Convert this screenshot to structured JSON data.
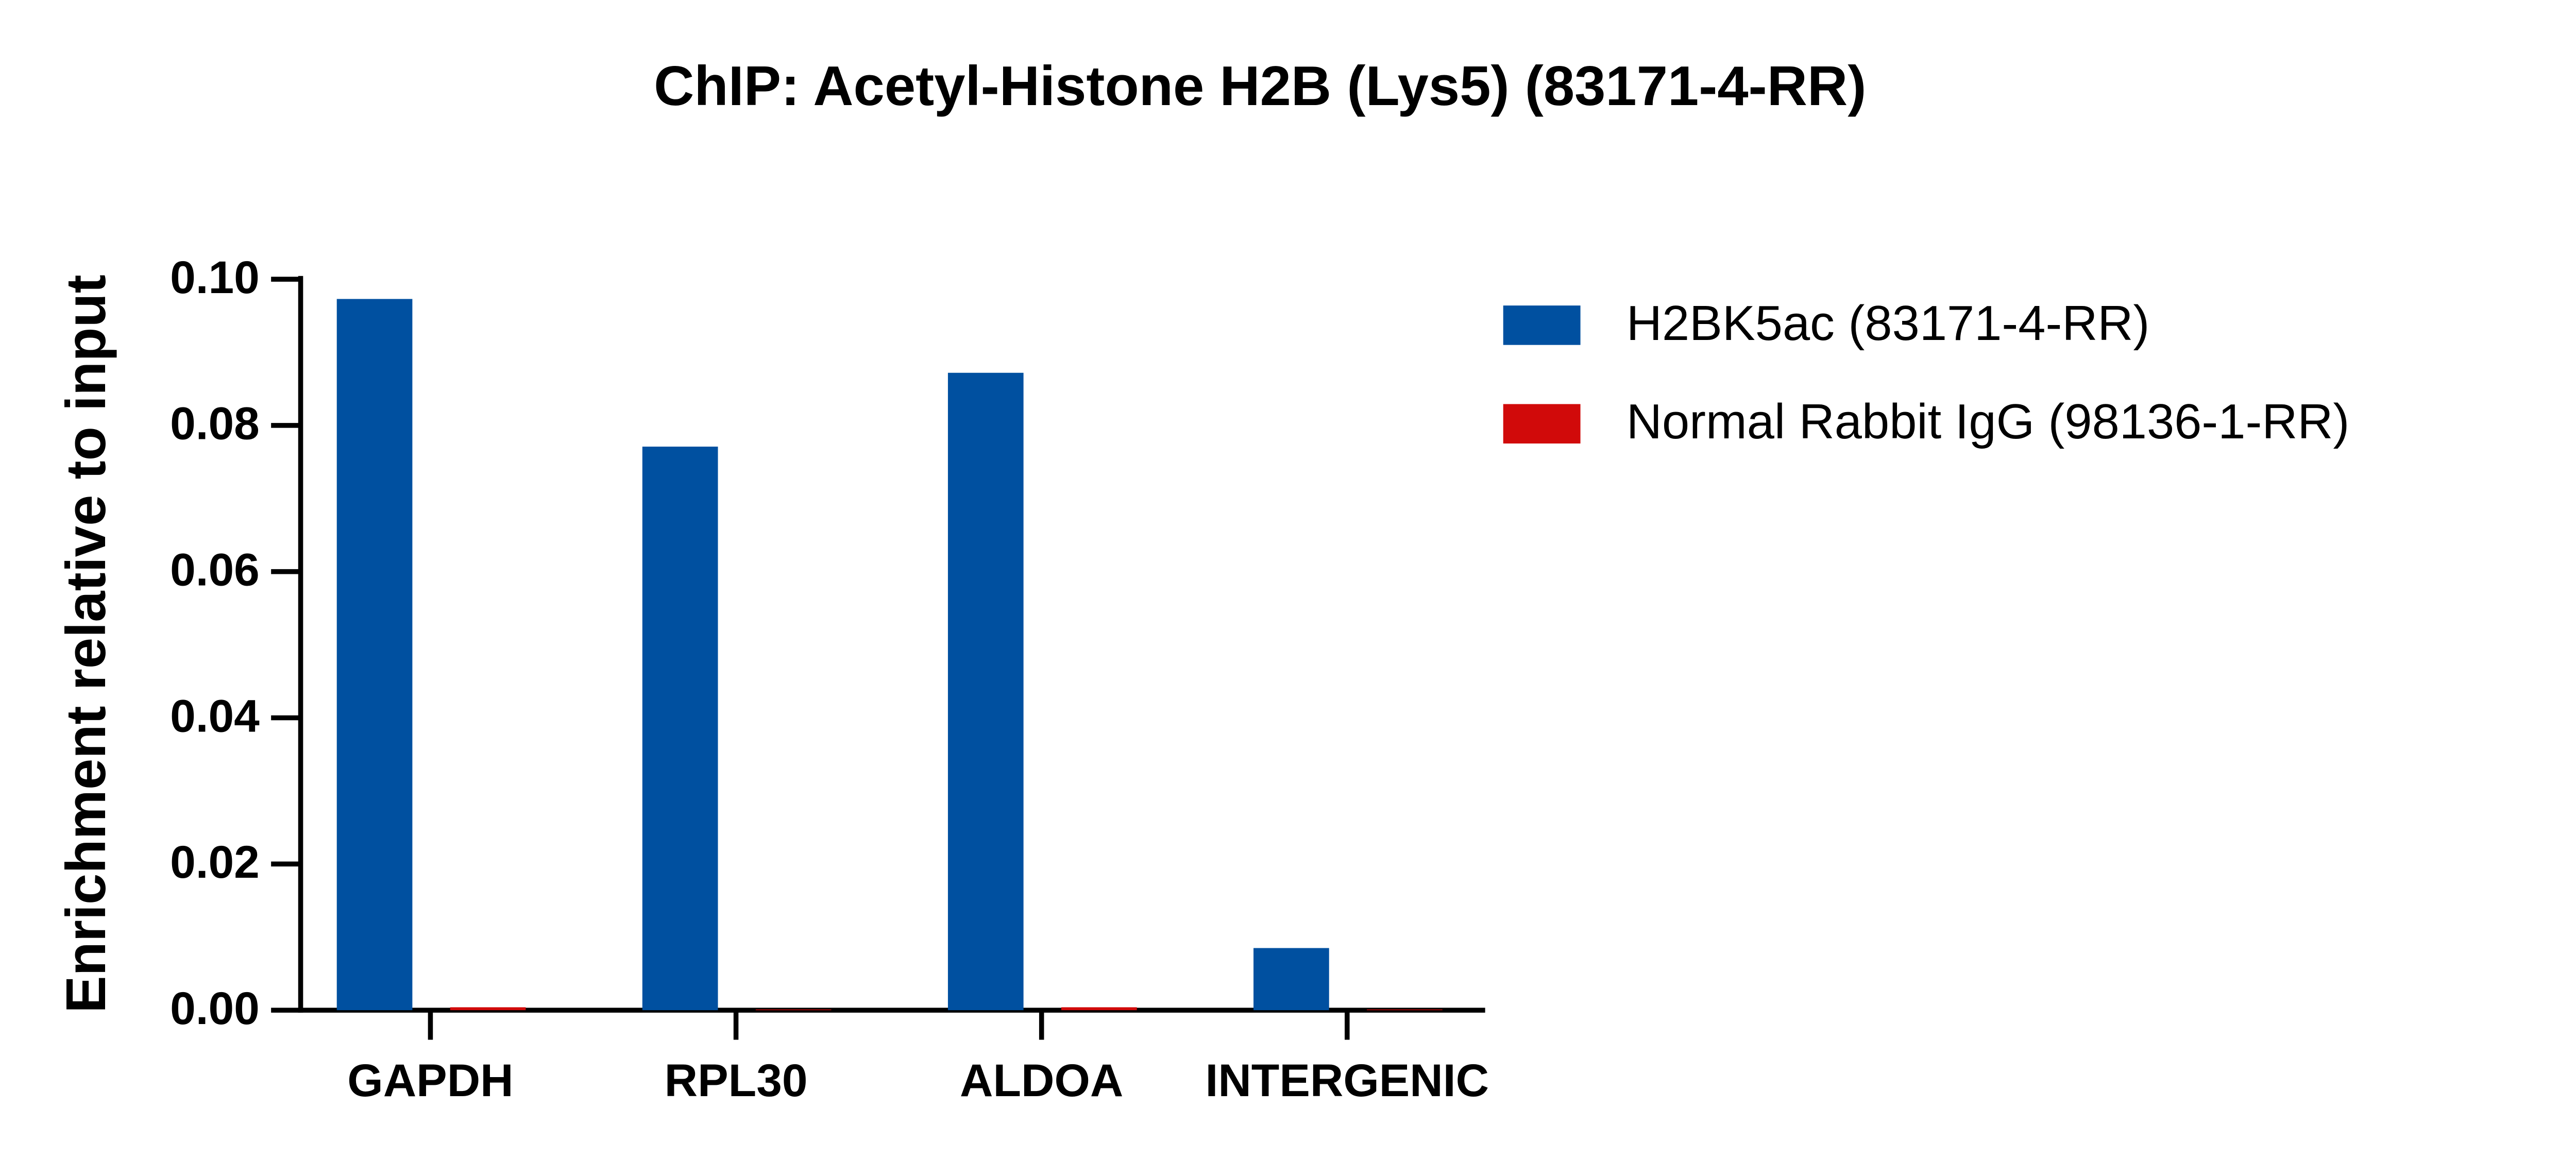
{
  "chart_data": {
    "type": "bar",
    "title": "ChIP: Acetyl-Histone H2B (Lys5) (83171-4-RR)",
    "y_label": "Enrichment relative to input",
    "categories": [
      "GAPDH",
      "RPL30",
      "ALDOA",
      "INTERGENIC"
    ],
    "series": [
      {
        "name": "H2BK5ac (83171-4-RR)",
        "color": "#0050a0",
        "values": [
          0.0973,
          0.0771,
          0.0872,
          0.0085
        ]
      },
      {
        "name": "Normal Rabbit IgG (98136-1-RR)",
        "color": "#d10a0a",
        "values": [
          0.0004,
          0.0001,
          0.0004,
          0.0001
        ]
      }
    ],
    "ylim": [
      0,
      0.1
    ],
    "yticks": [
      {
        "value": 0,
        "label": "0.00"
      },
      0.02,
      0.04,
      0.06,
      0.08,
      {
        "value": 0.1,
        "label": "0.10"
      }
    ],
    "legend": "right"
  }
}
